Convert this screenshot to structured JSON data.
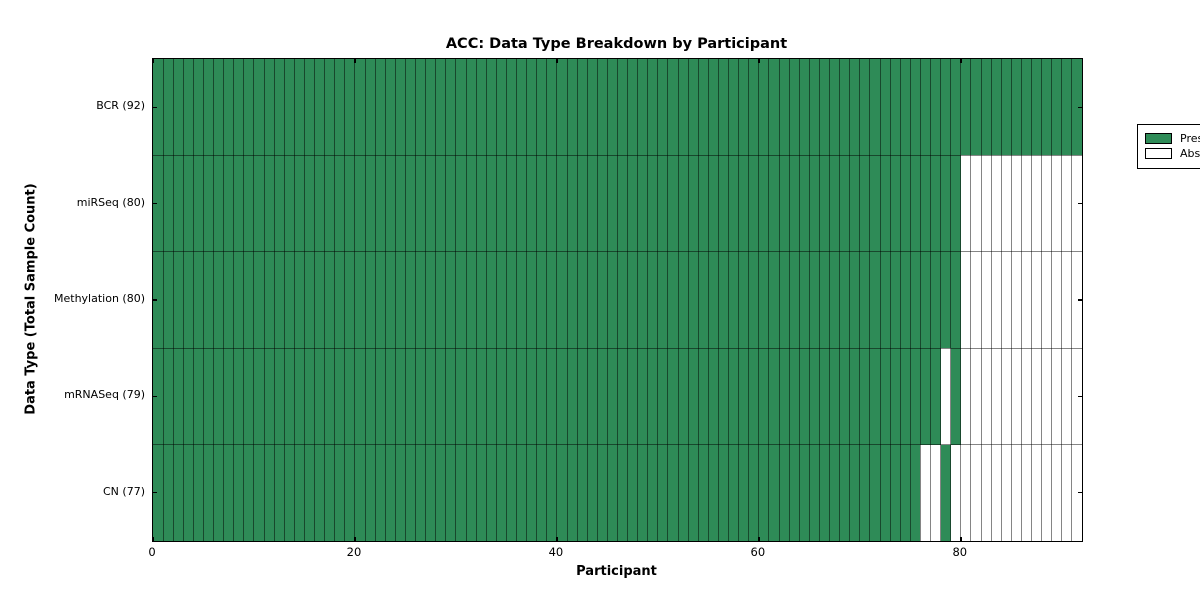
{
  "figure": {
    "title": "ACC: Data Type Breakdown by Participant",
    "xlabel": "Participant",
    "ylabel": "Data Type (Total Sample Count)"
  },
  "legend": {
    "items": [
      {
        "label": "Present",
        "color": "#2e8b57"
      },
      {
        "label": "Absent",
        "color": "#ffffff"
      }
    ]
  },
  "chart_data": {
    "type": "heatmap",
    "title": "ACC: Data Type Breakdown by Participant",
    "xlabel": "Participant",
    "ylabel": "Data Type (Total Sample Count)",
    "n_participants": 92,
    "x_ticks": [
      0,
      20,
      40,
      60,
      80
    ],
    "xlim": [
      0,
      92
    ],
    "grid": "cell-borders",
    "legend_position": "upper-right",
    "present_color": "#2e8b57",
    "absent_color": "#ffffff",
    "cell_edge_color": "rgba(0,0,0,0.48)",
    "rows": [
      {
        "label": "BCR (92)",
        "data_type": "BCR",
        "total_samples": 92,
        "absent_participant_ranges": []
      },
      {
        "label": "miRSeq (80)",
        "data_type": "miRSeq",
        "total_samples": 80,
        "absent_participant_ranges": [
          [
            80,
            91
          ]
        ]
      },
      {
        "label": "Methylation (80)",
        "data_type": "Methylation",
        "total_samples": 80,
        "absent_participant_ranges": [
          [
            80,
            91
          ]
        ]
      },
      {
        "label": "mRNASeq (79)",
        "data_type": "mRNASeq",
        "total_samples": 79,
        "absent_participant_ranges": [
          [
            78,
            78
          ],
          [
            80,
            91
          ]
        ]
      },
      {
        "label": "CN (77)",
        "data_type": "CN",
        "total_samples": 77,
        "absent_participant_ranges": [
          [
            76,
            77
          ],
          [
            79,
            91
          ]
        ]
      }
    ]
  }
}
